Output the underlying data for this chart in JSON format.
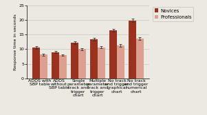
{
  "categories": [
    "ADDS with\nSBP table",
    "ADDS\nwithout\nSBP table",
    "Single\nparameter\ntrack and\ntrigger\nchart",
    "Multiple\nparameter\ntrack and\ntrigger\nchart",
    "No track\nand trigger\ngraphical\nchart",
    "No track\nand trigger\nnumerical\nchart"
  ],
  "novices": [
    10.5,
    9.0,
    12.2,
    13.5,
    16.5,
    19.9
  ],
  "professionals": [
    8.2,
    8.0,
    10.0,
    10.6,
    11.3,
    13.7
  ],
  "novices_err": [
    0.5,
    0.35,
    0.45,
    0.45,
    0.5,
    0.55
  ],
  "professionals_err": [
    0.35,
    0.3,
    0.35,
    0.35,
    0.4,
    0.5
  ],
  "novices_color": "#9B3220",
  "professionals_color": "#DDA090",
  "ylabel": "Response time in seconds",
  "ylim": [
    0,
    25
  ],
  "yticks": [
    0,
    5,
    10,
    15,
    20,
    25
  ],
  "legend_novices": "Novices",
  "legend_professionals": "Professionals",
  "bar_width": 0.38,
  "background_color": "#ece9e3",
  "label_fontsize": 4.5,
  "tick_fontsize": 4.5,
  "legend_fontsize": 5.0
}
